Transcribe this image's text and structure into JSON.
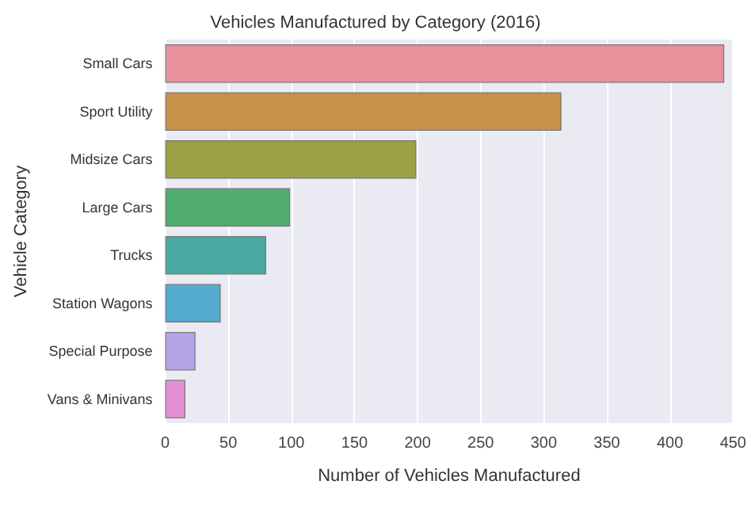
{
  "chart_data": {
    "type": "bar",
    "orientation": "horizontal",
    "title": "Vehicles Manufactured by Category (2016)",
    "xlabel": "Number of Vehicles Manufactured",
    "ylabel": "Vehicle Category",
    "categories": [
      "Small Cars",
      "Sport Utility",
      "Midsize Cars",
      "Large Cars",
      "Trucks",
      "Station Wagons",
      "Special Purpose",
      "Vans & Minivans"
    ],
    "values": [
      443,
      314,
      199,
      99,
      80,
      44,
      24,
      16
    ],
    "colors": [
      "#e8909c",
      "#c8914a",
      "#9aa245",
      "#4fac6e",
      "#4aa9a0",
      "#54abd0",
      "#b5a3e8",
      "#e48ed6"
    ],
    "xlim": [
      0,
      450
    ],
    "xticks": [
      0,
      50,
      100,
      150,
      200,
      250,
      300,
      350,
      400,
      450
    ],
    "grid": "x"
  }
}
